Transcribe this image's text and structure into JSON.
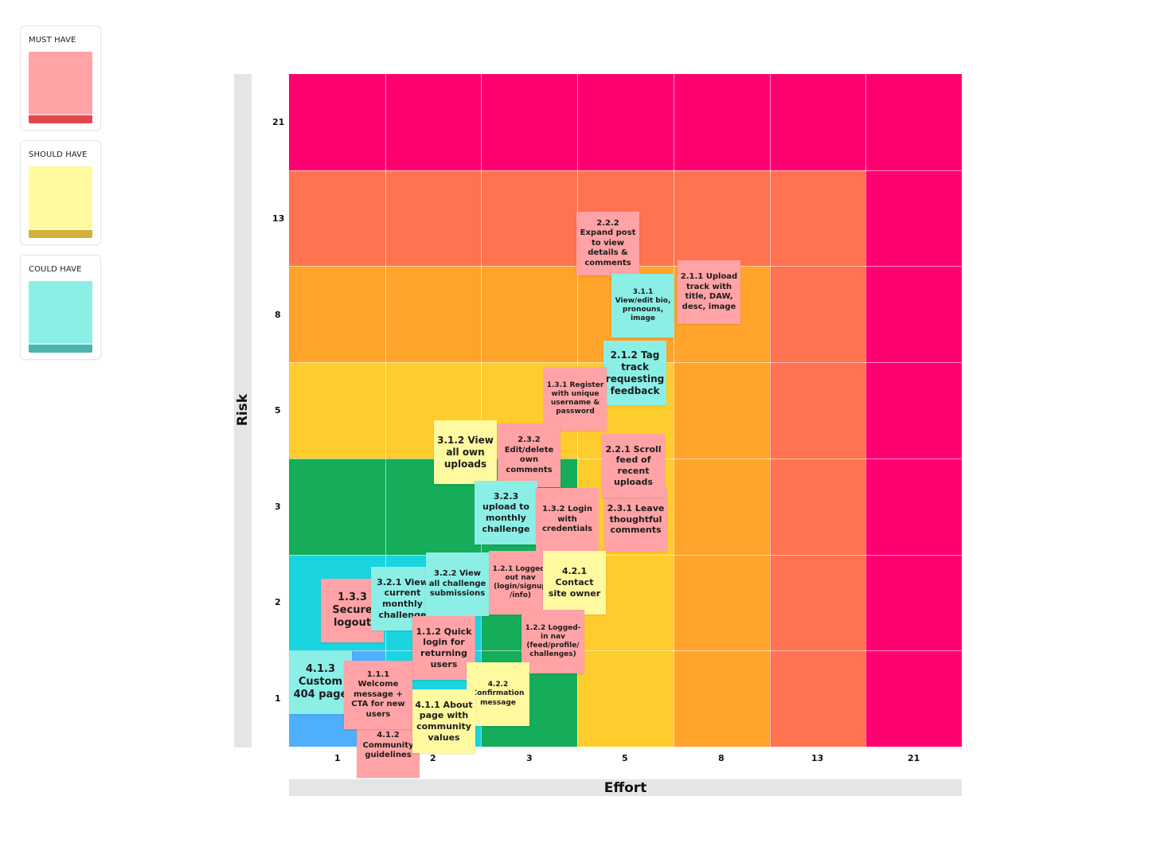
{
  "legend": [
    {
      "label": "MUST HAVE",
      "color": "#ffa3a6",
      "edge": "#e04a4f"
    },
    {
      "label": "SHOULD HAVE",
      "color": "#fff9a0",
      "edge": "#d4b13a"
    },
    {
      "label": "COULD HAVE",
      "color": "#8cefe6",
      "edge": "#4fb3ad"
    }
  ],
  "axes": {
    "y_title": "Risk",
    "x_title": "Effort",
    "y_ticks": [
      "21",
      "13",
      "8",
      "5",
      "3",
      "2",
      "1"
    ],
    "x_ticks": [
      "1",
      "2",
      "3",
      "5",
      "8",
      "13",
      "21"
    ]
  },
  "colors": {
    "magenta": "#ff0070",
    "coral": "#ff7350",
    "orange": "#ffa32a",
    "yellow": "#ffcc2e",
    "green": "#15ac5a",
    "cyan": "#1ad4e0",
    "blue": "#4eaffc",
    "note_must": "#ffa3a6",
    "note_should": "#fff9a0",
    "note_could": "#8cefe6"
  },
  "grid_colors": [
    [
      "magenta",
      "magenta",
      "magenta",
      "magenta",
      "magenta",
      "magenta",
      "magenta"
    ],
    [
      "coral",
      "coral",
      "coral",
      "coral",
      "coral",
      "coral",
      "magenta"
    ],
    [
      "orange",
      "orange",
      "orange",
      "orange",
      "orange",
      "coral",
      "magenta"
    ],
    [
      "yellow",
      "yellow",
      "yellow",
      "yellow",
      "orange",
      "coral",
      "magenta"
    ],
    [
      "green",
      "green",
      "green",
      "yellow",
      "orange",
      "coral",
      "magenta"
    ],
    [
      "cyan",
      "cyan",
      "green",
      "yellow",
      "orange",
      "coral",
      "magenta"
    ],
    [
      "blue",
      "cyan",
      "green",
      "yellow",
      "orange",
      "coral",
      "magenta"
    ]
  ],
  "notes": {
    "n222": {
      "text": "2.2.2 Expand post to view details & comments",
      "priority": "must"
    },
    "n211": {
      "text": "2.1.1 Upload track with title, DAW, desc, image",
      "priority": "must"
    },
    "n311": {
      "text": "3.1.1 View/edit bio, pronouns, image",
      "priority": "could"
    },
    "n212": {
      "text": "2.1.2 Tag track requesting feedback",
      "priority": "could"
    },
    "n131": {
      "text": "1.3.1 Register with unique username & password",
      "priority": "must"
    },
    "n312": {
      "text": "3.1.2 View all own uploads",
      "priority": "should"
    },
    "n232": {
      "text": "2.3.2 Edit/delete own comments",
      "priority": "must"
    },
    "n221": {
      "text": "2.2.1 Scroll feed of recent uploads",
      "priority": "must"
    },
    "n231": {
      "text": "2.3.1 Leave thoughtful comments",
      "priority": "must"
    },
    "n323": {
      "text": "3.2.3 upload to monthly challenge",
      "priority": "could"
    },
    "n132": {
      "text": "1.3.2 Login with credentials",
      "priority": "must"
    },
    "n133": {
      "text": "1.3.3 Secure logout",
      "priority": "must"
    },
    "n321": {
      "text": "3.2.1 View current monthly challenge",
      "priority": "could"
    },
    "n322": {
      "text": "3.2.2 View all challenge submissions",
      "priority": "could"
    },
    "n121": {
      "text": "1.2.1 Logged-out nav (login/signup /info)",
      "priority": "must"
    },
    "n421": {
      "text": "4.2.1 Contact site owner",
      "priority": "should"
    },
    "n112": {
      "text": "1.1.2 Quick login for returning users",
      "priority": "must"
    },
    "n122": {
      "text": "1.2.2 Logged-in nav (feed/profile/ challenges)",
      "priority": "must"
    },
    "n413": {
      "text": "4.1.3 Custom 404 page",
      "priority": "could"
    },
    "n111": {
      "text": "1.1.1 Welcome message + CTA for new users",
      "priority": "must"
    },
    "n422": {
      "text": "4.2.2 Confirmation message",
      "priority": "should"
    },
    "n411": {
      "text": "4.1.1 About page with community values",
      "priority": "should"
    },
    "n412": {
      "text": "4.1.2 Community guidelines",
      "priority": "must"
    }
  }
}
